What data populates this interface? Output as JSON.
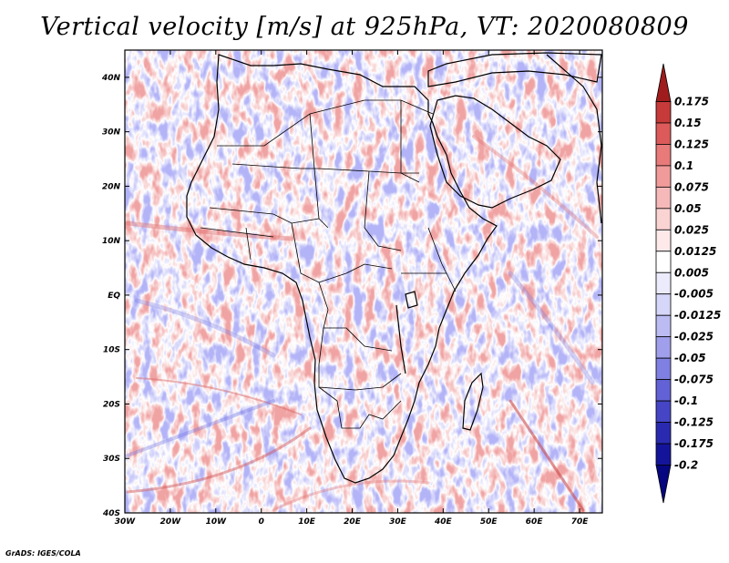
{
  "title": "Vertical velocity [m/s] at 925hPa, VT: 2020080809",
  "credit": "GrADS: IGES/COLA",
  "map": {
    "region": "Africa",
    "variable": "Vertical velocity",
    "units": "m/s",
    "level": "925hPa",
    "valid_time": "2020080809",
    "lon_range": [
      -30,
      75
    ],
    "lat_range": [
      -40,
      45
    ],
    "lon_ticks": [
      "30W",
      "20W",
      "10W",
      "0",
      "10E",
      "20E",
      "30E",
      "40E",
      "50E",
      "60E",
      "70E"
    ],
    "lat_ticks": [
      "40N",
      "30N",
      "20N",
      "10N",
      "EQ",
      "10S",
      "20S",
      "30S",
      "40S"
    ]
  },
  "colorbar": {
    "labels": [
      "0.175",
      "0.15",
      "0.125",
      "0.1",
      "0.075",
      "0.05",
      "0.025",
      "0.0125",
      "0.005",
      "-0.005",
      "-0.0125",
      "-0.025",
      "-0.05",
      "-0.075",
      "-0.1",
      "-0.125",
      "-0.175",
      "-0.2"
    ],
    "colors": [
      "#a01c1c",
      "#c73a3a",
      "#dc5a5a",
      "#e87a7a",
      "#f19a9a",
      "#f6b9b9",
      "#fad3d3",
      "#fde9e9",
      "#ffffff",
      "#ebebfc",
      "#d6d6f8",
      "#bcbcf3",
      "#9f9fec",
      "#8080e2",
      "#6262d6",
      "#4545c6",
      "#2a2ab0",
      "#14149a",
      "#060680"
    ]
  }
}
